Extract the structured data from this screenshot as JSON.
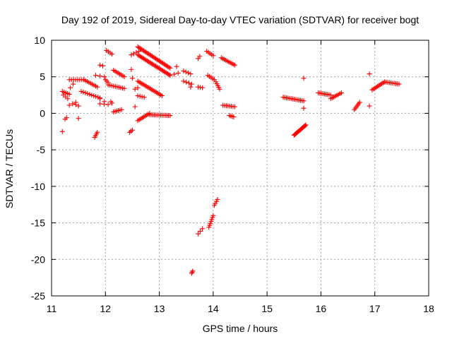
{
  "chart_data": {
    "type": "scatter",
    "title": "Day 192 of 2019, Sidereal Day-to-day VTEC variation (SDTVAR) for receiver bogt",
    "xlabel": "GPS time / hours",
    "ylabel": "SDTVAR / TECUs",
    "xlim": [
      11,
      18
    ],
    "ylim": [
      -25,
      10
    ],
    "xticks": [
      11,
      12,
      13,
      14,
      15,
      16,
      17,
      18
    ],
    "yticks": [
      -25,
      -20,
      -15,
      -10,
      -5,
      0,
      5,
      10
    ],
    "grid": true,
    "marker": "+",
    "color": "#ff0000",
    "segments": [
      {
        "x0": 11.2,
        "y0": -2.5,
        "x1": 11.2,
        "y1": -2.5,
        "n": 1
      },
      {
        "x0": 11.25,
        "y0": -0.8,
        "x1": 11.28,
        "y1": -0.6,
        "n": 2
      },
      {
        "x0": 11.2,
        "y0": 3.0,
        "x1": 11.33,
        "y1": 2.6,
        "n": 5
      },
      {
        "x0": 11.22,
        "y0": 2.5,
        "x1": 11.3,
        "y1": 2.0,
        "n": 3
      },
      {
        "x0": 11.33,
        "y0": 4.6,
        "x1": 11.6,
        "y1": 4.6,
        "n": 8
      },
      {
        "x0": 11.33,
        "y0": 1.1,
        "x1": 11.45,
        "y1": 1.5,
        "n": 3
      },
      {
        "x0": 11.45,
        "y0": 1.2,
        "x1": 11.5,
        "y1": 1.0,
        "n": 2
      },
      {
        "x0": 11.5,
        "y0": -0.7,
        "x1": 11.5,
        "y1": -0.7,
        "n": 1
      },
      {
        "x0": 11.4,
        "y0": 4.0,
        "x1": 11.4,
        "y1": 4.0,
        "n": 1
      },
      {
        "x0": 11.35,
        "y0": 3.5,
        "x1": 11.35,
        "y1": 3.5,
        "n": 1
      },
      {
        "x0": 11.6,
        "y0": 4.6,
        "x1": 11.85,
        "y1": 3.6,
        "n": 9
      },
      {
        "x0": 11.55,
        "y0": 3.0,
        "x1": 11.9,
        "y1": 2.1,
        "n": 10
      },
      {
        "x0": 11.8,
        "y0": -3.3,
        "x1": 11.85,
        "y1": -2.6,
        "n": 4
      },
      {
        "x0": 11.82,
        "y0": 5.2,
        "x1": 11.98,
        "y1": 5.0,
        "n": 3
      },
      {
        "x0": 11.9,
        "y0": 6.6,
        "x1": 11.95,
        "y1": 6.5,
        "n": 2
      },
      {
        "x0": 11.9,
        "y0": 2.0,
        "x1": 11.98,
        "y1": 1.6,
        "n": 2
      },
      {
        "x0": 11.9,
        "y0": 1.3,
        "x1": 12.05,
        "y1": 1.2,
        "n": 3
      },
      {
        "x0": 12.0,
        "y0": 4.6,
        "x1": 12.05,
        "y1": 4.2,
        "n": 3
      },
      {
        "x0": 12.02,
        "y0": 8.6,
        "x1": 12.12,
        "y1": 8.1,
        "n": 4
      },
      {
        "x0": 12.05,
        "y0": 3.9,
        "x1": 12.35,
        "y1": 3.4,
        "n": 10
      },
      {
        "x0": 12.1,
        "y0": 1.6,
        "x1": 12.12,
        "y1": 1.4,
        "n": 2
      },
      {
        "x0": 12.15,
        "y0": 5.9,
        "x1": 12.35,
        "y1": 5.0,
        "n": 8
      },
      {
        "x0": 12.15,
        "y0": 0.2,
        "x1": 12.3,
        "y1": 0.5,
        "n": 6
      },
      {
        "x0": 12.45,
        "y0": -2.6,
        "x1": 12.5,
        "y1": -2.3,
        "n": 3
      },
      {
        "x0": 12.48,
        "y0": 6.0,
        "x1": 12.48,
        "y1": 6.0,
        "n": 1
      },
      {
        "x0": 12.5,
        "y0": 4.8,
        "x1": 12.5,
        "y1": 4.8,
        "n": 1
      },
      {
        "x0": 12.48,
        "y0": 8.0,
        "x1": 12.62,
        "y1": 8.5,
        "n": 4
      },
      {
        "x0": 12.55,
        "y0": 0.9,
        "x1": 12.55,
        "y1": 0.9,
        "n": 1
      },
      {
        "x0": 12.55,
        "y0": 3.3,
        "x1": 12.6,
        "y1": 3.5,
        "n": 2
      },
      {
        "x0": 12.6,
        "y0": 9.1,
        "x1": 13.2,
        "y1": 6.2,
        "n": 28
      },
      {
        "x0": 12.6,
        "y0": 8.0,
        "x1": 13.2,
        "y1": 5.2,
        "n": 28
      },
      {
        "x0": 12.6,
        "y0": 4.4,
        "x1": 13.05,
        "y1": 2.4,
        "n": 18
      },
      {
        "x0": 12.6,
        "y0": 2.4,
        "x1": 12.72,
        "y1": 2.2,
        "n": 4
      },
      {
        "x0": 12.6,
        "y0": -1.0,
        "x1": 12.82,
        "y1": 0.0,
        "n": 9
      },
      {
        "x0": 12.82,
        "y0": -0.2,
        "x1": 13.2,
        "y1": -0.3,
        "n": 14
      },
      {
        "x0": 13.2,
        "y0": 5.2,
        "x1": 13.35,
        "y1": 5.5,
        "n": 3
      },
      {
        "x0": 13.32,
        "y0": 6.4,
        "x1": 13.32,
        "y1": 6.4,
        "n": 1
      },
      {
        "x0": 13.45,
        "y0": 5.8,
        "x1": 13.58,
        "y1": 5.4,
        "n": 4
      },
      {
        "x0": 13.45,
        "y0": 4.4,
        "x1": 13.6,
        "y1": 4.0,
        "n": 4
      },
      {
        "x0": 13.58,
        "y0": 3.6,
        "x1": 13.6,
        "y1": 3.6,
        "n": 1
      },
      {
        "x0": 13.6,
        "y0": -21.9,
        "x1": 13.62,
        "y1": -21.6,
        "n": 3
      },
      {
        "x0": 13.72,
        "y0": -16.5,
        "x1": 13.8,
        "y1": -15.8,
        "n": 3
      },
      {
        "x0": 13.72,
        "y0": 7.5,
        "x1": 13.75,
        "y1": 7.8,
        "n": 2
      },
      {
        "x0": 13.72,
        "y0": 3.6,
        "x1": 13.8,
        "y1": 3.5,
        "n": 3
      },
      {
        "x0": 13.88,
        "y0": 8.5,
        "x1": 14.0,
        "y1": 7.9,
        "n": 5
      },
      {
        "x0": 13.9,
        "y0": 5.2,
        "x1": 14.02,
        "y1": 4.6,
        "n": 5
      },
      {
        "x0": 13.92,
        "y0": -15.6,
        "x1": 14.0,
        "y1": -14.0,
        "n": 7
      },
      {
        "x0": 14.02,
        "y0": -12.6,
        "x1": 14.08,
        "y1": -11.8,
        "n": 4
      },
      {
        "x0": 14.05,
        "y0": 4.3,
        "x1": 14.12,
        "y1": 3.3,
        "n": 5
      },
      {
        "x0": 14.15,
        "y0": 7.6,
        "x1": 14.4,
        "y1": 6.6,
        "n": 10
      },
      {
        "x0": 14.18,
        "y0": 1.1,
        "x1": 14.4,
        "y1": 0.9,
        "n": 8
      },
      {
        "x0": 14.3,
        "y0": -0.3,
        "x1": 14.38,
        "y1": -0.5,
        "n": 4
      },
      {
        "x0": 15.3,
        "y0": 2.2,
        "x1": 15.68,
        "y1": 1.7,
        "n": 14
      },
      {
        "x0": 15.5,
        "y0": -3.0,
        "x1": 15.72,
        "y1": -1.6,
        "n": 16
      },
      {
        "x0": 15.68,
        "y0": 4.8,
        "x1": 15.68,
        "y1": 4.8,
        "n": 1
      },
      {
        "x0": 15.68,
        "y0": 0.7,
        "x1": 15.68,
        "y1": 0.7,
        "n": 1
      },
      {
        "x0": 15.95,
        "y0": 2.8,
        "x1": 16.18,
        "y1": 2.5,
        "n": 9
      },
      {
        "x0": 16.18,
        "y0": 2.0,
        "x1": 16.38,
        "y1": 2.8,
        "n": 8
      },
      {
        "x0": 16.62,
        "y0": 0.5,
        "x1": 16.72,
        "y1": 1.5,
        "n": 6
      },
      {
        "x0": 16.9,
        "y0": 5.4,
        "x1": 16.9,
        "y1": 5.4,
        "n": 1
      },
      {
        "x0": 16.9,
        "y0": 1.0,
        "x1": 16.9,
        "y1": 1.0,
        "n": 1
      },
      {
        "x0": 16.95,
        "y0": 3.2,
        "x1": 17.18,
        "y1": 4.3,
        "n": 10
      },
      {
        "x0": 17.18,
        "y0": 4.3,
        "x1": 17.45,
        "y1": 4.0,
        "n": 10
      }
    ]
  }
}
